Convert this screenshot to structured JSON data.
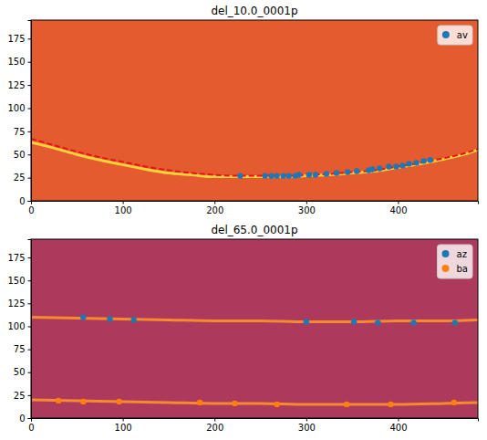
{
  "chart_data": [
    {
      "type": "scatter",
      "title": "del_10.0_0001p",
      "xlim": [
        0,
        487
      ],
      "ylim": [
        0,
        195
      ],
      "xticks": [
        0,
        100,
        200,
        300,
        400
      ],
      "yticks": [
        0,
        25,
        50,
        75,
        100,
        125,
        150,
        175
      ],
      "legend": "upper right",
      "series": [
        {
          "type": "line",
          "color": "#ffd23a",
          "line_style": "solid",
          "x": [
            0,
            25,
            50,
            75,
            100,
            125,
            150,
            175,
            200,
            225,
            250,
            275,
            300,
            325,
            350,
            375,
            400,
            425,
            450,
            475,
            487
          ],
          "values": [
            63,
            57,
            50,
            44,
            39,
            34,
            30,
            28,
            26,
            26,
            26,
            26,
            27,
            28,
            30,
            32,
            36,
            40,
            45,
            51,
            55
          ]
        },
        {
          "type": "line",
          "color": "#e8101a",
          "line_style": "dashed",
          "x": [
            0,
            25,
            50,
            75,
            100,
            125,
            150,
            175,
            200,
            225,
            250,
            275,
            300,
            325,
            350,
            375,
            400,
            425,
            450,
            475,
            487
          ],
          "values": [
            67,
            60,
            53,
            47,
            42,
            37,
            33,
            30,
            28,
            27,
            27,
            27,
            28,
            29,
            31,
            33,
            37,
            41,
            46,
            52,
            56
          ]
        },
        {
          "type": "scatter",
          "name": "av",
          "color": "#1f77b4",
          "marker": "circle",
          "x": [
            228,
            255,
            262,
            268,
            275,
            281,
            288,
            292,
            303,
            310,
            322,
            333,
            345,
            355,
            368,
            372,
            380,
            390,
            398,
            405,
            412,
            420,
            428,
            435
          ],
          "values": [
            27,
            27,
            27,
            27,
            27,
            27,
            27,
            28,
            28,
            28,
            29,
            30,
            31,
            32,
            33,
            34,
            35,
            37,
            37,
            38,
            40,
            41,
            43,
            44
          ]
        }
      ]
    },
    {
      "type": "scatter",
      "title": "del_65.0_0001p",
      "xlim": [
        0,
        487
      ],
      "ylim": [
        0,
        195
      ],
      "xticks": [
        0,
        100,
        200,
        300,
        400
      ],
      "yticks": [
        0,
        25,
        50,
        75,
        100,
        125,
        150,
        175
      ],
      "legend": "upper right",
      "series": [
        {
          "type": "line",
          "color": "#f58a2e",
          "line_style": "solid",
          "x": [
            0,
            50,
            100,
            150,
            200,
            250,
            300,
            350,
            400,
            450,
            487
          ],
          "values": [
            110,
            109,
            108,
            107,
            106,
            106,
            105,
            105,
            106,
            106,
            107
          ]
        },
        {
          "type": "line",
          "color": "#f58a2e",
          "line_style": "solid",
          "x": [
            0,
            50,
            100,
            150,
            200,
            250,
            300,
            350,
            400,
            450,
            487
          ],
          "values": [
            20,
            19,
            18,
            17,
            16,
            16,
            15,
            15,
            15,
            16,
            17
          ]
        },
        {
          "type": "scatter",
          "name": "az",
          "color": "#1f77b4",
          "marker": "circle",
          "x": [
            57,
            86,
            112,
            300,
            352,
            378,
            417,
            462
          ],
          "values": [
            110,
            108,
            107,
            105,
            105,
            104,
            104,
            104
          ]
        },
        {
          "type": "scatter",
          "name": "ba",
          "color": "#ff7f0e",
          "marker": "circle",
          "x": [
            30,
            57,
            96,
            184,
            222,
            268,
            344,
            392,
            461
          ],
          "values": [
            19,
            18,
            18,
            17,
            16,
            15,
            15,
            15,
            17
          ]
        }
      ]
    }
  ]
}
